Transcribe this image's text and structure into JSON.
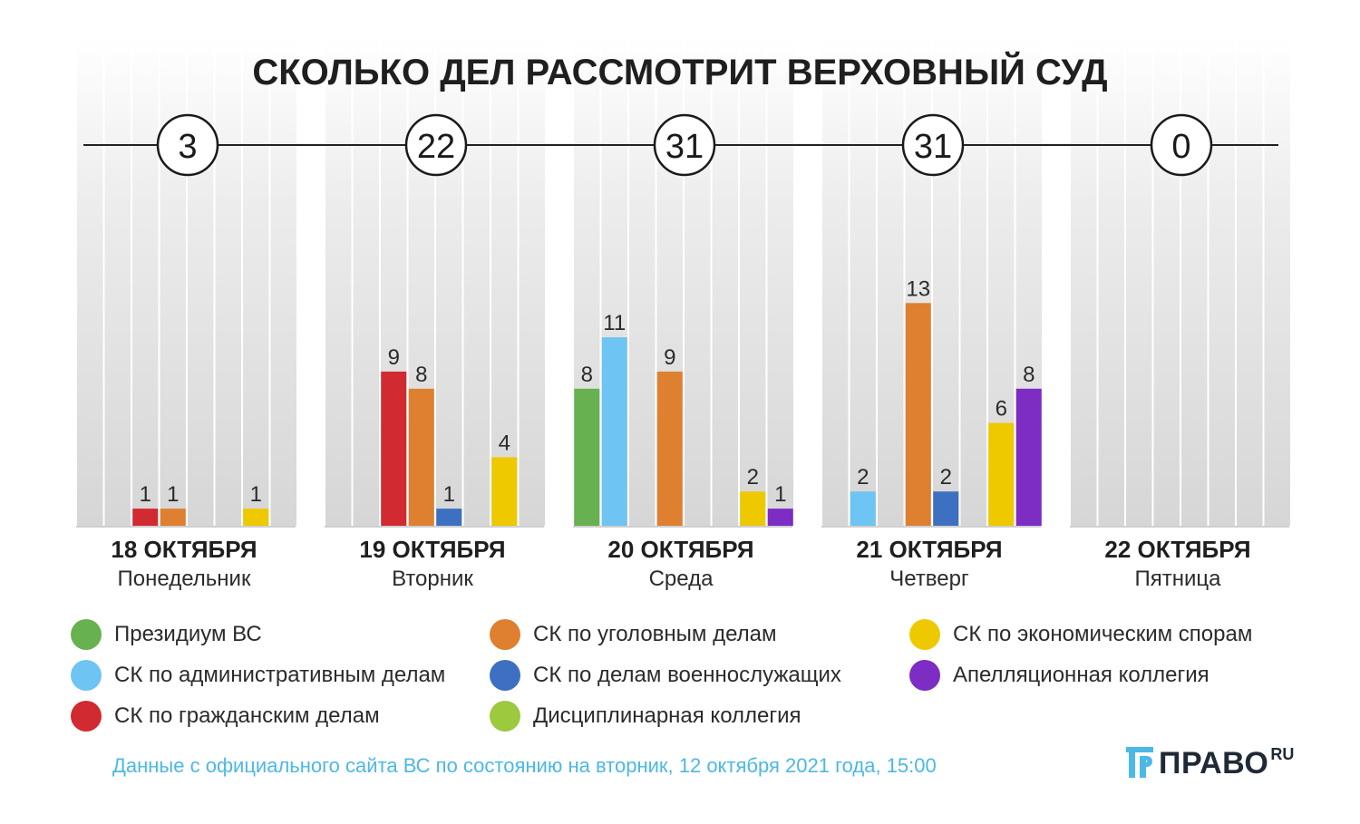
{
  "chart_data": {
    "type": "bar",
    "title": "СКОЛЬКО ДЕЛ РАССМОТРИТ ВЕРХОВНЫЙ СУД",
    "days": [
      {
        "date": "18 ОКТЯБРЯ",
        "weekday": "Понедельник",
        "total": "3"
      },
      {
        "date": "19 ОКТЯБРЯ",
        "weekday": "Вторник",
        "total": "22"
      },
      {
        "date": "20 ОКТЯБРЯ",
        "weekday": "Среда",
        "total": "31"
      },
      {
        "date": "21 ОКТЯБРЯ",
        "weekday": "Четверг",
        "total": "31"
      },
      {
        "date": "22 ОКТЯБРЯ",
        "weekday": "Пятница",
        "total": "0"
      }
    ],
    "series": [
      {
        "name": "Президиум ВС",
        "color": "#67b150",
        "values": [
          0,
          0,
          8,
          0,
          0
        ]
      },
      {
        "name": "СК по административным делам",
        "color": "#6ec4f2",
        "values": [
          0,
          0,
          11,
          2,
          0
        ]
      },
      {
        "name": "СК по гражданским делам",
        "color": "#d12a30",
        "values": [
          1,
          9,
          0,
          0,
          0
        ]
      },
      {
        "name": "СК по уголовным делам",
        "color": "#de8030",
        "values": [
          1,
          8,
          9,
          13,
          0
        ]
      },
      {
        "name": "СК по делам военнослужащих",
        "color": "#3d70c0",
        "values": [
          0,
          1,
          0,
          2,
          0
        ]
      },
      {
        "name": "Дисциплинарная коллегия",
        "color": "#9cc93e",
        "values": [
          0,
          0,
          0,
          0,
          0
        ]
      },
      {
        "name": "СК по экономическим спорам",
        "color": "#efc900",
        "values": [
          1,
          4,
          2,
          6,
          0
        ]
      },
      {
        "name": "Апелляционная коллегия",
        "color": "#7d2cc4",
        "values": [
          0,
          0,
          1,
          8,
          0
        ]
      }
    ],
    "ylim": [
      0,
      14
    ],
    "grid": true
  },
  "footer": {
    "source": "Данные с официального сайта ВС по состоянию на вторник, 12 октября 2021 года, 15:00"
  },
  "logo": {
    "name": "ПРАВО",
    "suffix": "RU"
  }
}
